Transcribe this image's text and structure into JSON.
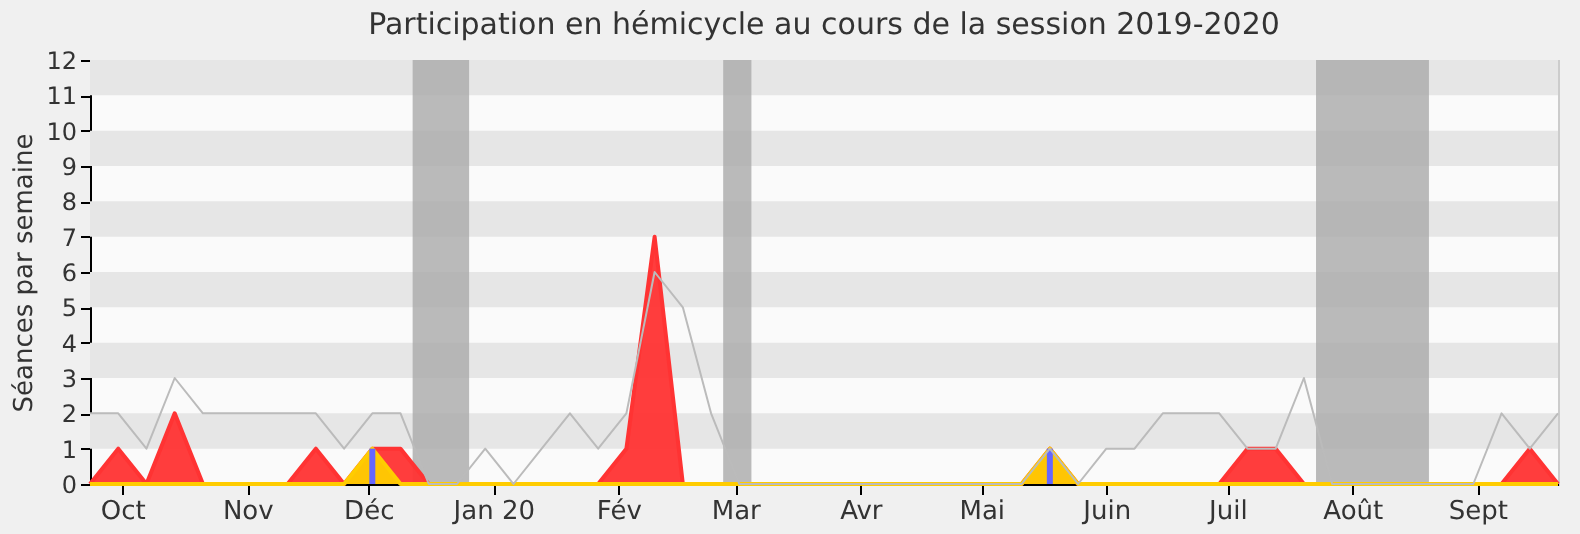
{
  "chart_data": {
    "type": "area",
    "title": "Participation en hémicycle au cours de la session 2019-2020",
    "ylabel": "Séances par semaine",
    "x": [
      "2019-09-23",
      "2019-09-30",
      "2019-10-07",
      "2019-10-14",
      "2019-10-21",
      "2019-10-28",
      "2019-11-04",
      "2019-11-11",
      "2019-11-18",
      "2019-11-25",
      "2019-12-02",
      "2019-12-09",
      "2019-12-16",
      "2019-12-23",
      "2019-12-30",
      "2020-01-06",
      "2020-01-13",
      "2020-01-20",
      "2020-01-27",
      "2020-02-03",
      "2020-02-10",
      "2020-02-17",
      "2020-02-24",
      "2020-03-02",
      "2020-03-09",
      "2020-03-16",
      "2020-03-23",
      "2020-03-30",
      "2020-04-06",
      "2020-04-13",
      "2020-04-20",
      "2020-04-27",
      "2020-05-04",
      "2020-05-11",
      "2020-05-18",
      "2020-05-25",
      "2020-06-01",
      "2020-06-08",
      "2020-06-15",
      "2020-06-22",
      "2020-06-29",
      "2020-07-06",
      "2020-07-13",
      "2020-07-20",
      "2020-07-27",
      "2020-08-03",
      "2020-08-10",
      "2020-08-17",
      "2020-08-24",
      "2020-08-31",
      "2020-09-07",
      "2020-09-14",
      "2020-09-21"
    ],
    "series": [
      {
        "type": "line",
        "color": "#bbbbbb",
        "values": [
          2,
          2,
          1,
          3,
          2,
          2,
          2,
          2,
          2,
          1,
          2,
          2,
          0,
          0,
          1,
          0,
          1,
          2,
          1,
          2,
          6,
          5,
          2,
          0,
          0,
          0,
          0,
          0,
          0,
          0,
          0,
          0,
          0,
          0,
          1,
          0,
          1,
          1,
          2,
          2,
          2,
          1,
          1,
          3,
          0,
          0,
          0,
          0,
          0,
          0,
          2,
          1,
          2
        ]
      },
      {
        "color": "#ff3333",
        "values": [
          0,
          1,
          0,
          2,
          0,
          0,
          0,
          0,
          1,
          0,
          1,
          1,
          0,
          0,
          0,
          0,
          0,
          0,
          0,
          1,
          7,
          0,
          0,
          0,
          0,
          0,
          0,
          0,
          0,
          0,
          0,
          0,
          0,
          0,
          1,
          0,
          0,
          0,
          0,
          0,
          0,
          1,
          1,
          0,
          0,
          0,
          0,
          0,
          0,
          0,
          0,
          1,
          0
        ]
      },
      {
        "color": "#ffcc00",
        "values": [
          0,
          0,
          0,
          0,
          0,
          0,
          0,
          0,
          0,
          0,
          1,
          0,
          0,
          0,
          0,
          0,
          0,
          0,
          0,
          0,
          0,
          0,
          0,
          0,
          0,
          0,
          0,
          0,
          0,
          0,
          0,
          0,
          0,
          0,
          1,
          0,
          0,
          0,
          0,
          0,
          0,
          0,
          0,
          0,
          0,
          0,
          0,
          0,
          0,
          0,
          0,
          0,
          0
        ]
      },
      {
        "type": "bar",
        "color": "#6666ff",
        "values": [
          0,
          0,
          0,
          0,
          0,
          0,
          0,
          0,
          0,
          0,
          1,
          0,
          0,
          0,
          0,
          0,
          0,
          0,
          0,
          0,
          0,
          0,
          0,
          0,
          0,
          0,
          0,
          0,
          0,
          0,
          0,
          0,
          0,
          0,
          1,
          0,
          0,
          0,
          0,
          0,
          0,
          0,
          0,
          0,
          0,
          0,
          0,
          0,
          0,
          0,
          0,
          0,
          0
        ]
      }
    ],
    "bands": [
      {
        "axis": "x",
        "from": "2019-12-12",
        "to": "2019-12-26",
        "color": "#aaaaaa"
      },
      {
        "axis": "x",
        "from": "2020-02-27",
        "to": "2020-03-05",
        "color": "#aaaaaa"
      },
      {
        "axis": "x",
        "from": "2020-07-23",
        "to": "2020-08-20",
        "color": "#aaaaaa"
      }
    ],
    "xlim": [
      "2019-09-23",
      "2020-09-21"
    ],
    "xticks": [
      {
        "value": "2019-10-01",
        "label": "Oct"
      },
      {
        "value": "2019-11-01",
        "label": "Nov"
      },
      {
        "value": "2019-12-01",
        "label": "Déc"
      },
      {
        "value": "2020-01-01",
        "label": "Jan 20"
      },
      {
        "value": "2020-02-01",
        "label": "Fév"
      },
      {
        "value": "2020-03-01",
        "label": "Mar"
      },
      {
        "value": "2020-04-01",
        "label": "Avr"
      },
      {
        "value": "2020-05-01",
        "label": "Mai"
      },
      {
        "value": "2020-06-01",
        "label": "Juin"
      },
      {
        "value": "2020-07-01",
        "label": "Juil"
      },
      {
        "value": "2020-08-01",
        "label": "Août"
      },
      {
        "value": "2020-09-01",
        "label": "Sept"
      }
    ],
    "ylim": [
      0,
      12
    ],
    "yticks": [
      0,
      1,
      2,
      3,
      4,
      5,
      6,
      7,
      8,
      9,
      10,
      11,
      12
    ]
  }
}
